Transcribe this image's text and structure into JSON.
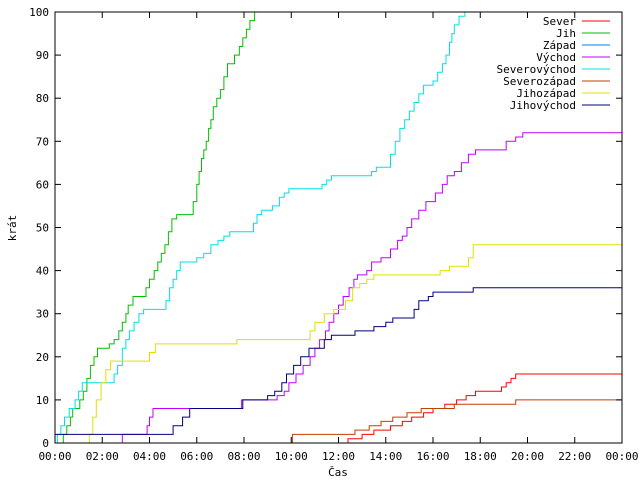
{
  "chart_data": {
    "type": "line",
    "title": "",
    "xlabel": "Čas",
    "ylabel": "krát",
    "xlim": [
      0,
      24
    ],
    "ylim": [
      0,
      100
    ],
    "x_ticks": [
      {
        "value": 0,
        "label": "00:00"
      },
      {
        "value": 2,
        "label": "02:00"
      },
      {
        "value": 4,
        "label": "04:00"
      },
      {
        "value": 6,
        "label": "06:00"
      },
      {
        "value": 8,
        "label": "08:00"
      },
      {
        "value": 10,
        "label": "10:00"
      },
      {
        "value": 12,
        "label": "12:00"
      },
      {
        "value": 14,
        "label": "14:00"
      },
      {
        "value": 16,
        "label": "16:00"
      },
      {
        "value": 18,
        "label": "18:00"
      },
      {
        "value": 20,
        "label": "20:00"
      },
      {
        "value": 22,
        "label": "22:00"
      },
      {
        "value": 24,
        "label": "00:00"
      }
    ],
    "y_ticks": [
      0,
      10,
      20,
      30,
      40,
      50,
      60,
      70,
      80,
      90,
      100
    ],
    "grid": false,
    "legend_position": "top-right",
    "step": true,
    "series": [
      {
        "name": "Sever",
        "color": "#ff0000",
        "points": [
          [
            12.35,
            0
          ],
          [
            12.4,
            1
          ],
          [
            13.0,
            2
          ],
          [
            13.5,
            3
          ],
          [
            14.2,
            4
          ],
          [
            14.7,
            5
          ],
          [
            15.1,
            6
          ],
          [
            15.6,
            7
          ],
          [
            16.0,
            8
          ],
          [
            16.5,
            9
          ],
          [
            17.0,
            10
          ],
          [
            17.4,
            11
          ],
          [
            17.8,
            12
          ],
          [
            18.9,
            13
          ],
          [
            19.1,
            14
          ],
          [
            19.3,
            15
          ],
          [
            19.5,
            16
          ],
          [
            24.0,
            16
          ]
        ]
      },
      {
        "name": "Jih",
        "color": "#00c000",
        "points": [
          [
            0.3,
            0
          ],
          [
            0.35,
            2
          ],
          [
            0.5,
            4
          ],
          [
            0.65,
            6
          ],
          [
            0.75,
            8
          ],
          [
            1.05,
            10
          ],
          [
            1.2,
            12
          ],
          [
            1.35,
            15
          ],
          [
            1.5,
            18
          ],
          [
            1.65,
            20
          ],
          [
            1.8,
            22
          ],
          [
            2.2,
            22
          ],
          [
            2.3,
            23
          ],
          [
            2.5,
            24
          ],
          [
            2.7,
            26
          ],
          [
            2.85,
            28
          ],
          [
            3.0,
            30
          ],
          [
            3.1,
            32
          ],
          [
            3.3,
            34
          ],
          [
            3.7,
            34
          ],
          [
            3.85,
            36
          ],
          [
            4.0,
            38
          ],
          [
            4.2,
            40
          ],
          [
            4.35,
            42
          ],
          [
            4.5,
            44
          ],
          [
            4.65,
            46
          ],
          [
            4.8,
            49
          ],
          [
            4.95,
            52
          ],
          [
            5.15,
            53
          ],
          [
            5.75,
            53
          ],
          [
            5.85,
            56
          ],
          [
            6.0,
            60
          ],
          [
            6.1,
            63
          ],
          [
            6.2,
            66
          ],
          [
            6.3,
            68
          ],
          [
            6.4,
            70
          ],
          [
            6.5,
            73
          ],
          [
            6.6,
            75
          ],
          [
            6.7,
            78
          ],
          [
            6.85,
            80
          ],
          [
            7.0,
            82
          ],
          [
            7.15,
            85
          ],
          [
            7.3,
            88
          ],
          [
            7.5,
            88
          ],
          [
            7.6,
            90
          ],
          [
            7.8,
            92
          ],
          [
            7.95,
            94
          ],
          [
            8.1,
            96
          ],
          [
            8.25,
            98
          ],
          [
            8.45,
            100
          ]
        ]
      },
      {
        "name": "Západ",
        "color": "#0080ff",
        "points": []
      },
      {
        "name": "Východ",
        "color": "#c000ff",
        "points": [
          [
            2.8,
            0
          ],
          [
            2.85,
            2
          ],
          [
            3.8,
            2
          ],
          [
            3.9,
            4
          ],
          [
            4.0,
            6
          ],
          [
            4.15,
            8
          ],
          [
            5.8,
            8
          ],
          [
            7.8,
            8
          ],
          [
            7.9,
            10
          ],
          [
            9.0,
            10
          ],
          [
            9.4,
            11
          ],
          [
            9.7,
            12
          ],
          [
            9.9,
            14
          ],
          [
            10.2,
            16
          ],
          [
            10.5,
            18
          ],
          [
            10.8,
            20
          ],
          [
            11.0,
            22
          ],
          [
            11.2,
            24
          ],
          [
            11.45,
            26
          ],
          [
            11.6,
            28
          ],
          [
            11.8,
            30
          ],
          [
            12.0,
            32
          ],
          [
            12.2,
            34
          ],
          [
            12.45,
            36
          ],
          [
            12.65,
            38
          ],
          [
            12.8,
            39
          ],
          [
            13.2,
            40
          ],
          [
            13.4,
            42
          ],
          [
            13.8,
            43
          ],
          [
            14.2,
            45
          ],
          [
            14.5,
            47
          ],
          [
            14.7,
            48
          ],
          [
            14.9,
            50
          ],
          [
            15.1,
            52
          ],
          [
            15.4,
            54
          ],
          [
            15.7,
            56
          ],
          [
            16.1,
            58
          ],
          [
            16.4,
            60
          ],
          [
            16.6,
            62
          ],
          [
            16.9,
            63
          ],
          [
            17.2,
            65
          ],
          [
            17.5,
            67
          ],
          [
            17.8,
            68
          ],
          [
            18.9,
            68
          ],
          [
            19.1,
            70
          ],
          [
            19.5,
            71
          ],
          [
            19.8,
            72
          ],
          [
            24.0,
            72
          ]
        ]
      },
      {
        "name": "Severovýchod",
        "color": "#00e0e0",
        "points": [
          [
            0.0,
            0
          ],
          [
            0.1,
            2
          ],
          [
            0.25,
            4
          ],
          [
            0.4,
            6
          ],
          [
            0.6,
            8
          ],
          [
            0.85,
            10
          ],
          [
            1.0,
            12
          ],
          [
            1.15,
            14
          ],
          [
            2.35,
            14
          ],
          [
            2.5,
            16
          ],
          [
            2.65,
            18
          ],
          [
            2.85,
            22
          ],
          [
            3.0,
            24
          ],
          [
            3.15,
            26
          ],
          [
            3.35,
            28
          ],
          [
            3.55,
            30
          ],
          [
            3.75,
            31
          ],
          [
            4.5,
            31
          ],
          [
            4.7,
            33
          ],
          [
            4.85,
            36
          ],
          [
            5.0,
            38
          ],
          [
            5.15,
            40
          ],
          [
            5.3,
            42
          ],
          [
            5.8,
            42
          ],
          [
            6.0,
            43
          ],
          [
            6.3,
            44
          ],
          [
            6.6,
            46
          ],
          [
            6.9,
            47
          ],
          [
            7.15,
            48
          ],
          [
            7.4,
            49
          ],
          [
            8.3,
            49
          ],
          [
            8.4,
            51
          ],
          [
            8.55,
            53
          ],
          [
            8.75,
            54
          ],
          [
            9.2,
            55
          ],
          [
            9.5,
            57
          ],
          [
            9.7,
            58
          ],
          [
            9.9,
            59
          ],
          [
            10.9,
            59
          ],
          [
            11.3,
            60
          ],
          [
            11.5,
            61
          ],
          [
            11.7,
            62
          ],
          [
            13.2,
            62
          ],
          [
            13.4,
            63
          ],
          [
            13.6,
            64
          ],
          [
            14.0,
            64
          ],
          [
            14.2,
            67
          ],
          [
            14.4,
            70
          ],
          [
            14.6,
            73
          ],
          [
            14.8,
            75
          ],
          [
            15.0,
            77
          ],
          [
            15.2,
            79
          ],
          [
            15.4,
            81
          ],
          [
            15.6,
            83
          ],
          [
            16.0,
            84
          ],
          [
            16.2,
            86
          ],
          [
            16.4,
            88
          ],
          [
            16.55,
            90
          ],
          [
            16.7,
            93
          ],
          [
            16.8,
            95
          ],
          [
            16.9,
            97
          ],
          [
            17.1,
            99
          ],
          [
            17.35,
            100
          ]
        ]
      },
      {
        "name": "Severozápad",
        "color": "#c04000",
        "points": [
          [
            10.0,
            0
          ],
          [
            10.05,
            2
          ],
          [
            12.5,
            2
          ],
          [
            12.7,
            3
          ],
          [
            13.3,
            4
          ],
          [
            13.8,
            5
          ],
          [
            14.3,
            6
          ],
          [
            14.9,
            7
          ],
          [
            15.5,
            8
          ],
          [
            16.7,
            8
          ],
          [
            16.9,
            9
          ],
          [
            19.3,
            9
          ],
          [
            19.5,
            10
          ],
          [
            24.0,
            10
          ]
        ]
      },
      {
        "name": "Jihozápad",
        "color": "#e0e000",
        "points": [
          [
            1.35,
            0
          ],
          [
            1.45,
            2
          ],
          [
            1.6,
            6
          ],
          [
            1.75,
            10
          ],
          [
            1.95,
            14
          ],
          [
            2.15,
            17
          ],
          [
            2.35,
            19
          ],
          [
            3.8,
            19
          ],
          [
            4.0,
            21
          ],
          [
            4.25,
            23
          ],
          [
            6.0,
            23
          ],
          [
            7.5,
            23
          ],
          [
            7.7,
            24
          ],
          [
            10.6,
            24
          ],
          [
            10.8,
            26
          ],
          [
            11.0,
            28
          ],
          [
            11.4,
            30
          ],
          [
            11.8,
            31
          ],
          [
            12.3,
            33
          ],
          [
            12.6,
            36
          ],
          [
            12.9,
            37
          ],
          [
            13.2,
            38
          ],
          [
            13.5,
            39
          ],
          [
            16.0,
            39
          ],
          [
            16.3,
            40
          ],
          [
            16.7,
            41
          ],
          [
            17.2,
            41
          ],
          [
            17.5,
            43
          ],
          [
            17.7,
            46
          ],
          [
            24.0,
            46
          ]
        ]
      },
      {
        "name": "Jihovýchod",
        "color": "#000080",
        "points": [
          [
            0.0,
            2
          ],
          [
            4.8,
            2
          ],
          [
            5.0,
            4
          ],
          [
            5.4,
            6
          ],
          [
            5.7,
            8
          ],
          [
            7.8,
            8
          ],
          [
            7.95,
            10
          ],
          [
            9.0,
            11
          ],
          [
            9.3,
            12
          ],
          [
            9.6,
            14
          ],
          [
            9.8,
            16
          ],
          [
            10.1,
            18
          ],
          [
            10.4,
            20
          ],
          [
            10.75,
            22
          ],
          [
            11.3,
            22
          ],
          [
            11.4,
            24
          ],
          [
            11.7,
            25
          ],
          [
            12.6,
            25
          ],
          [
            12.7,
            26
          ],
          [
            13.4,
            26
          ],
          [
            13.5,
            27
          ],
          [
            14.0,
            28
          ],
          [
            14.3,
            29
          ],
          [
            15.0,
            29
          ],
          [
            15.2,
            31
          ],
          [
            15.4,
            33
          ],
          [
            15.8,
            34
          ],
          [
            16.0,
            35
          ],
          [
            17.5,
            35
          ],
          [
            17.7,
            36
          ],
          [
            24.0,
            36
          ]
        ]
      }
    ]
  }
}
